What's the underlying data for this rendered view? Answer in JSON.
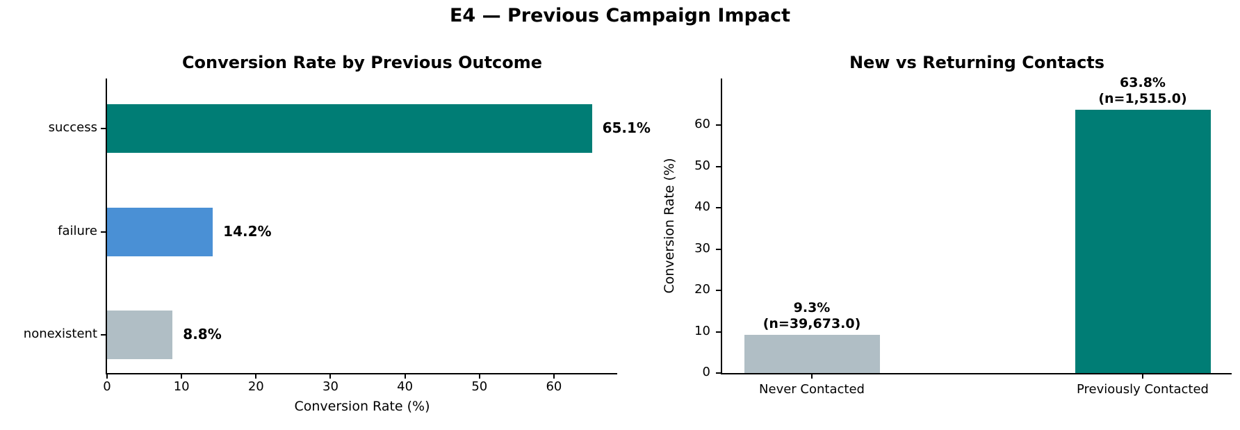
{
  "figure": {
    "suptitle": "E4 — Previous Campaign Impact"
  },
  "colors": {
    "teal": "#007d75",
    "blue": "#4a90d5",
    "gray": "#b0bec5",
    "axis": "#000000",
    "background": "#ffffff"
  },
  "chart_data": [
    {
      "type": "bar",
      "orientation": "horizontal",
      "title": "Conversion Rate by Previous Outcome",
      "xlabel": "Conversion Rate (%)",
      "ylabel": "",
      "categories": [
        "success",
        "failure",
        "nonexistent"
      ],
      "values": [
        65.1,
        14.2,
        8.8
      ],
      "value_labels": [
        "65.1%",
        "14.2%",
        "8.8%"
      ],
      "bar_colors": [
        "teal",
        "blue",
        "gray"
      ],
      "xlim": [
        0,
        68.5
      ],
      "xticks": [
        "0",
        "10",
        "20",
        "30",
        "40",
        "50",
        "60"
      ],
      "xtick_values": [
        0,
        10,
        20,
        30,
        40,
        50,
        60
      ],
      "grid": false,
      "legend": null
    },
    {
      "type": "bar",
      "orientation": "vertical",
      "title": "New vs Returning Contacts",
      "xlabel": "",
      "ylabel": "Conversion Rate (%)",
      "categories": [
        "Never Contacted",
        "Previously Contacted"
      ],
      "values": [
        9.3,
        63.8
      ],
      "annotations": [
        [
          "9.3%",
          "(n=39,673.0)"
        ],
        [
          "63.8%",
          "(n=1,515.0)"
        ]
      ],
      "bar_colors": [
        "gray",
        "teal"
      ],
      "ylim": [
        0,
        71.3
      ],
      "yticks": [
        "0",
        "10",
        "20",
        "30",
        "40",
        "50",
        "60"
      ],
      "ytick_values": [
        0,
        10,
        20,
        30,
        40,
        50,
        60
      ],
      "grid": false,
      "legend": null
    }
  ]
}
